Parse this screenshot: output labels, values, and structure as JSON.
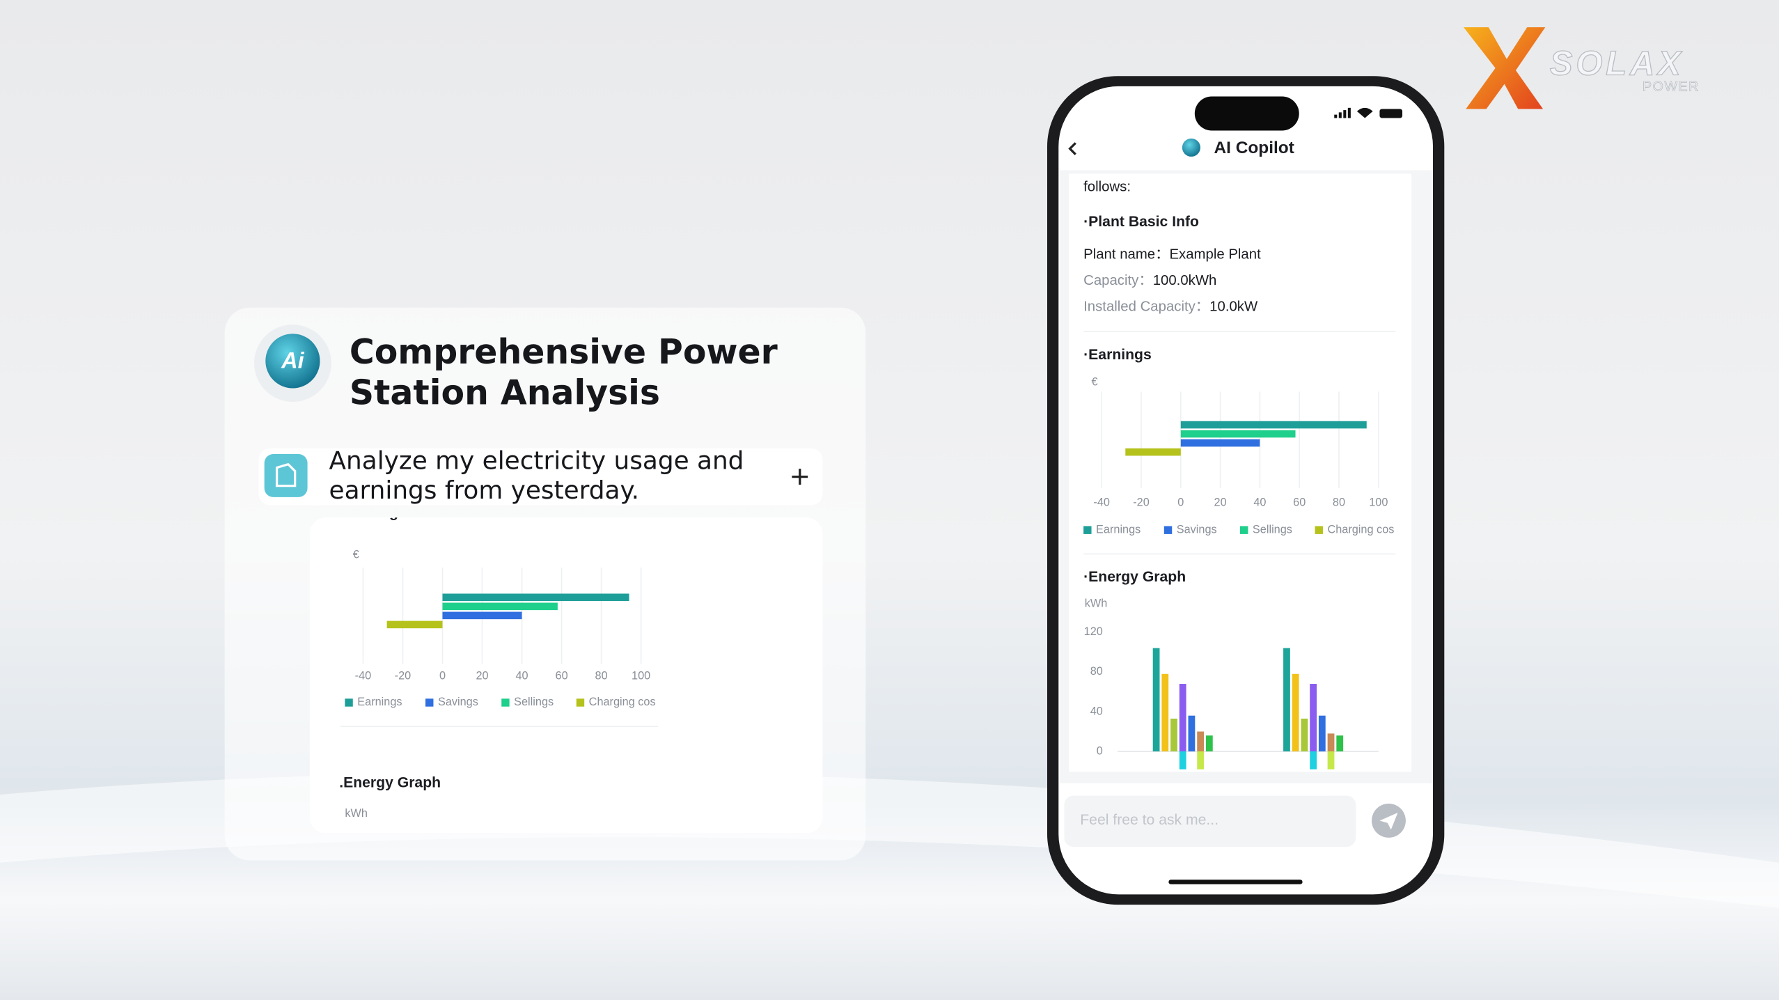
{
  "brand": {
    "name": "SOLAX",
    "tagline": "POWER"
  },
  "card": {
    "title_lines": [
      "Comprehensive Power",
      "Station Analysis"
    ],
    "prompt_lines": [
      "Analyze my electricity usage and",
      "earnings from yesterday."
    ],
    "earnings_chart": {
      "type": "bar",
      "orientation": "horizontal",
      "heading": ".Earnings",
      "unit": "€",
      "series": [
        {
          "name": "Earnings",
          "color": "#1e9e98",
          "values": [
            94
          ]
        },
        {
          "name": "Savings",
          "color": "#2f6fe0",
          "values": [
            40
          ]
        },
        {
          "name": "Sellings",
          "color": "#1fcf8c",
          "values": [
            58
          ]
        },
        {
          "name": "Charging cos",
          "color": "#b5c21b",
          "values": [
            -28
          ]
        }
      ],
      "xlim": [
        -40,
        100
      ],
      "xticks": [
        -40,
        -20,
        0,
        20,
        40,
        60,
        80,
        100
      ],
      "grid": true
    },
    "energy_heading": ".Energy Graph",
    "energy_unit": "kWh"
  },
  "phone": {
    "title": "AI Copilot",
    "intro": "follows:",
    "basic_heading": "·Plant Basic Info",
    "info": [
      {
        "label": "Plant name：",
        "value": "Example Plant"
      },
      {
        "label": "Capacity：",
        "value": "100.0kWh"
      },
      {
        "label": "Installed Capacity：",
        "value": "10.0kW"
      }
    ],
    "earnings_chart": {
      "type": "bar",
      "orientation": "horizontal",
      "heading": "·Earnings",
      "unit": "€",
      "series": [
        {
          "name": "Earnings",
          "color": "#1e9e98",
          "values": [
            94
          ]
        },
        {
          "name": "Savings",
          "color": "#2f6fe0",
          "values": [
            40
          ]
        },
        {
          "name": "Sellings",
          "color": "#1fcf8c",
          "values": [
            58
          ]
        },
        {
          "name": "Charging cos",
          "color": "#b5c21b",
          "values": [
            -28
          ]
        }
      ],
      "xlim": [
        -40,
        100
      ],
      "xticks": [
        -40,
        -20,
        0,
        20,
        40,
        60,
        80,
        100
      ],
      "grid": true
    },
    "energy_chart": {
      "type": "bar",
      "heading": "·Energy Graph",
      "unit": "kWh",
      "categories": [
        null,
        null
      ],
      "series": [
        {
          "color": "#1ea59a",
          "values": [
            104,
            104
          ]
        },
        {
          "color": "#f2c11a",
          "values": [
            78,
            78
          ]
        },
        {
          "color": "#a8c83a",
          "values": [
            33,
            33
          ]
        },
        {
          "color": "#8a5cf0",
          "values": [
            68,
            68
          ]
        },
        {
          "color": "#1fd0e0",
          "values": [
            -18,
            -18
          ]
        },
        {
          "color": "#2f6fe0",
          "values": [
            36,
            36
          ]
        },
        {
          "color": "#c98a55",
          "values": [
            20,
            18
          ]
        },
        {
          "color": "#c6e84a",
          "values": [
            -18,
            -18
          ]
        },
        {
          "color": "#2fc24a",
          "values": [
            16,
            16
          ]
        }
      ],
      "ylim": [
        -20,
        125
      ],
      "yticks": [
        0,
        40,
        80,
        120
      ],
      "grid": false
    },
    "placeholder": "Feel free to ask me..."
  }
}
